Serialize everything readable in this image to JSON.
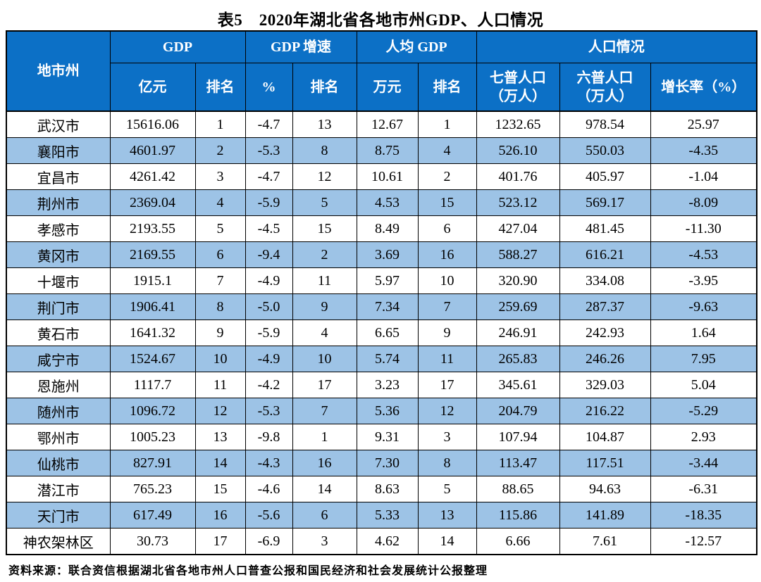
{
  "title": "表5　2020年湖北省各地市州GDP、人口情况",
  "colors": {
    "header_bg": "#0c70c6",
    "header_text": "#ffffff",
    "stripe_bg": "#9dc3e6",
    "border": "#000000",
    "text": "#000000"
  },
  "table": {
    "groups": {
      "city": "地市州",
      "gdp": "GDP",
      "gdp_growth": "GDP 增速",
      "gdp_per_capita": "人均 GDP",
      "population": "人口情况"
    },
    "subheaders": [
      "亿元",
      "排名",
      "%",
      "排名",
      "万元",
      "排名",
      "七普人口\n（万人）",
      "六普人口\n（万人）",
      "增长率（%）"
    ],
    "rows": [
      [
        "武汉市",
        "15616.06",
        "1",
        "-4.7",
        "13",
        "12.67",
        "1",
        "1232.65",
        "978.54",
        "25.97"
      ],
      [
        "襄阳市",
        "4601.97",
        "2",
        "-5.3",
        "8",
        "8.75",
        "4",
        "526.10",
        "550.03",
        "-4.35"
      ],
      [
        "宜昌市",
        "4261.42",
        "3",
        "-4.7",
        "12",
        "10.61",
        "2",
        "401.76",
        "405.97",
        "-1.04"
      ],
      [
        "荆州市",
        "2369.04",
        "4",
        "-5.9",
        "5",
        "4.53",
        "15",
        "523.12",
        "569.17",
        "-8.09"
      ],
      [
        "孝感市",
        "2193.55",
        "5",
        "-4.5",
        "15",
        "8.49",
        "6",
        "427.04",
        "481.45",
        "-11.30"
      ],
      [
        "黄冈市",
        "2169.55",
        "6",
        "-9.4",
        "2",
        "3.69",
        "16",
        "588.27",
        "616.21",
        "-4.53"
      ],
      [
        "十堰市",
        "1915.1",
        "7",
        "-4.9",
        "11",
        "5.97",
        "10",
        "320.90",
        "334.08",
        "-3.95"
      ],
      [
        "荆门市",
        "1906.41",
        "8",
        "-5.0",
        "9",
        "7.34",
        "7",
        "259.69",
        "287.37",
        "-9.63"
      ],
      [
        "黄石市",
        "1641.32",
        "9",
        "-5.9",
        "4",
        "6.65",
        "9",
        "246.91",
        "242.93",
        "1.64"
      ],
      [
        "咸宁市",
        "1524.67",
        "10",
        "-4.9",
        "10",
        "5.74",
        "11",
        "265.83",
        "246.26",
        "7.95"
      ],
      [
        "恩施州",
        "1117.7",
        "11",
        "-4.2",
        "17",
        "3.23",
        "17",
        "345.61",
        "329.03",
        "5.04"
      ],
      [
        "随州市",
        "1096.72",
        "12",
        "-5.3",
        "7",
        "5.36",
        "12",
        "204.79",
        "216.22",
        "-5.29"
      ],
      [
        "鄂州市",
        "1005.23",
        "13",
        "-9.8",
        "1",
        "9.31",
        "3",
        "107.94",
        "104.87",
        "2.93"
      ],
      [
        "仙桃市",
        "827.91",
        "14",
        "-4.3",
        "16",
        "7.30",
        "8",
        "113.47",
        "117.51",
        "-3.44"
      ],
      [
        "潜江市",
        "765.23",
        "15",
        "-4.6",
        "14",
        "8.63",
        "5",
        "88.65",
        "94.63",
        "-6.31"
      ],
      [
        "天门市",
        "617.49",
        "16",
        "-5.6",
        "6",
        "5.33",
        "13",
        "115.86",
        "141.89",
        "-18.35"
      ],
      [
        "神农架林区",
        "30.73",
        "17",
        "-6.9",
        "3",
        "4.62",
        "14",
        "6.66",
        "7.61",
        "-12.57"
      ]
    ]
  },
  "source_note": "资料来源：联合资信根据湖北省各地市州人口普查公报和国民经济和社会发展统计公报整理"
}
